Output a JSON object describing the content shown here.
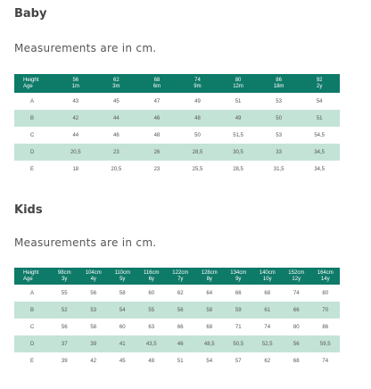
{
  "baby": {
    "title": "Baby",
    "note": "Measurements are in cm.",
    "header_label_top": "Height",
    "header_label_bottom": "Age",
    "columns": [
      {
        "height": "56",
        "age": "1m"
      },
      {
        "height": "62",
        "age": "3m"
      },
      {
        "height": "68",
        "age": "6m"
      },
      {
        "height": "74",
        "age": "9m"
      },
      {
        "height": "80",
        "age": "12m"
      },
      {
        "height": "86",
        "age": "18m"
      },
      {
        "height": "92",
        "age": "2y"
      }
    ],
    "rows": [
      {
        "label": "A",
        "values": [
          "43",
          "45",
          "47",
          "49",
          "51",
          "53",
          "54"
        ]
      },
      {
        "label": "B",
        "values": [
          "42",
          "44",
          "46",
          "48",
          "49",
          "50",
          "51"
        ]
      },
      {
        "label": "C",
        "values": [
          "44",
          "46",
          "48",
          "50",
          "51,5",
          "53",
          "54,5"
        ]
      },
      {
        "label": "D",
        "values": [
          "20,5",
          "23",
          "26",
          "28,5",
          "30,5",
          "33",
          "34,5"
        ]
      },
      {
        "label": "E",
        "values": [
          "18",
          "20,5",
          "23",
          "25,5",
          "28,5",
          "31,5",
          "34,5"
        ]
      }
    ]
  },
  "kids": {
    "title": "Kids",
    "note": "Measurements are in cm.",
    "header_label_top": "Height",
    "header_label_bottom": "Age",
    "columns": [
      {
        "height": "98cm",
        "age": "3y"
      },
      {
        "height": "104cm",
        "age": "4y"
      },
      {
        "height": "110cm",
        "age": "5y"
      },
      {
        "height": "116cm",
        "age": "6y"
      },
      {
        "height": "122cm",
        "age": "7y"
      },
      {
        "height": "128cm",
        "age": "8y"
      },
      {
        "height": "134cm",
        "age": "9y"
      },
      {
        "height": "140cm",
        "age": "10y"
      },
      {
        "height": "152cm",
        "age": "12y"
      },
      {
        "height": "164cm",
        "age": "14y"
      }
    ],
    "rows": [
      {
        "label": "A",
        "values": [
          "55",
          "56",
          "58",
          "60",
          "62",
          "64",
          "66",
          "68",
          "74",
          "80"
        ]
      },
      {
        "label": "B",
        "values": [
          "52",
          "53",
          "54",
          "55",
          "56",
          "58",
          "59",
          "61",
          "66",
          "70"
        ]
      },
      {
        "label": "C",
        "values": [
          "56",
          "58",
          "60",
          "63",
          "66",
          "68",
          "71",
          "74",
          "80",
          "86"
        ]
      },
      {
        "label": "D",
        "values": [
          "37",
          "39",
          "41",
          "43,5",
          "46",
          "48,5",
          "50,5",
          "52,5",
          "56",
          "59,5"
        ]
      },
      {
        "label": "E",
        "values": [
          "39",
          "42",
          "45",
          "48",
          "51",
          "54",
          "57",
          "62",
          "68",
          "74"
        ]
      }
    ]
  },
  "colors": {
    "header_bg": "#0e7a68",
    "shaded_row": "#c4e3d7"
  }
}
